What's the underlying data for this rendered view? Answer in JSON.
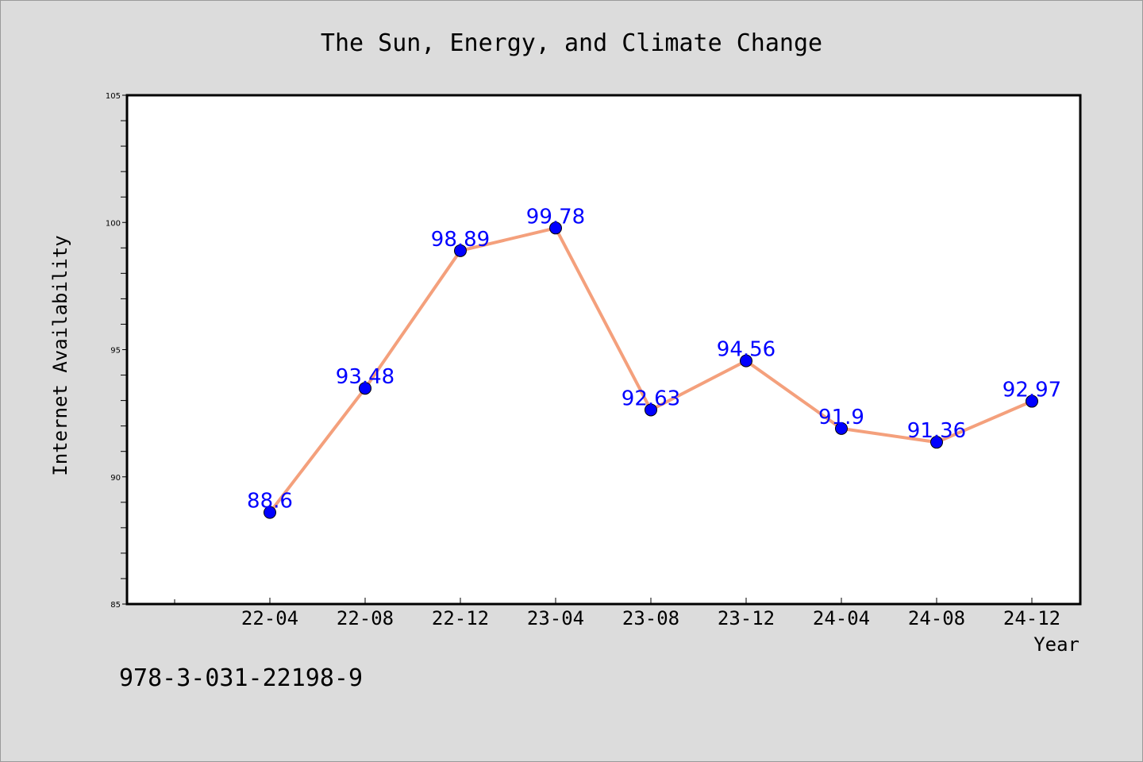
{
  "chart_data": {
    "type": "line",
    "title": "The Sun, Energy, and Climate Change",
    "xlabel": "Year",
    "ylabel": "Internet Availability",
    "categories": [
      "22-04",
      "22-08",
      "22-12",
      "23-04",
      "23-08",
      "23-12",
      "24-04",
      "24-08",
      "24-12"
    ],
    "series": [
      {
        "values": [
          88.6,
          93.48,
          98.89,
          99.78,
          92.63,
          94.56,
          91.9,
          91.36,
          92.97
        ]
      }
    ],
    "ylim": [
      85,
      105
    ],
    "yticks": [
      85,
      90,
      95,
      100,
      105
    ],
    "grid": false,
    "legend": "none",
    "line_color": "#f4a07c",
    "marker_color": "#0000ff",
    "label_color": "#0000ff"
  },
  "footnote": "978-3-031-22198-9"
}
